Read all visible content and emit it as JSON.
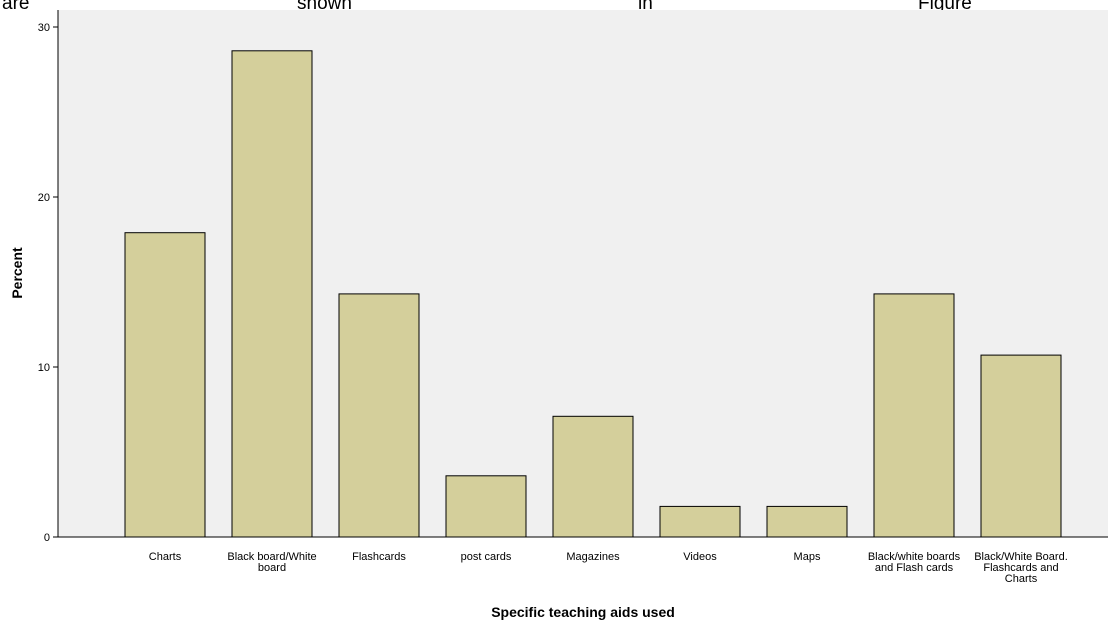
{
  "top_text": [
    "are",
    "shown",
    "in",
    "Figure"
  ],
  "chart_data": {
    "type": "bar",
    "title": "",
    "xlabel": "Specific teaching aids used",
    "ylabel": "Percent",
    "ylim": [
      0,
      31
    ],
    "yticks": [
      0,
      10,
      20,
      30
    ],
    "grid": false,
    "categories": [
      "Charts",
      "Black board/White board",
      "Flashcards",
      "post cards",
      "Magazines",
      "Videos",
      "Maps",
      "Black/white boards and Flash cards",
      "Black/White Board. Flashcards and Charts"
    ],
    "category_label_lines": [
      [
        "Charts"
      ],
      [
        "Black board/White",
        "board"
      ],
      [
        "Flashcards"
      ],
      [
        "post cards"
      ],
      [
        "Magazines"
      ],
      [
        "Videos"
      ],
      [
        "Maps"
      ],
      [
        "Black/white boards",
        "and Flash cards"
      ],
      [
        "Black/White Board.",
        "Flashcards and",
        "Charts"
      ]
    ],
    "values": [
      17.9,
      28.6,
      14.3,
      3.6,
      7.1,
      1.8,
      1.8,
      14.3,
      10.7
    ],
    "colors": {
      "bar_fill": "#d4cf9b",
      "bar_stroke": "#000000",
      "plot_background": "#f0f0f0"
    }
  }
}
